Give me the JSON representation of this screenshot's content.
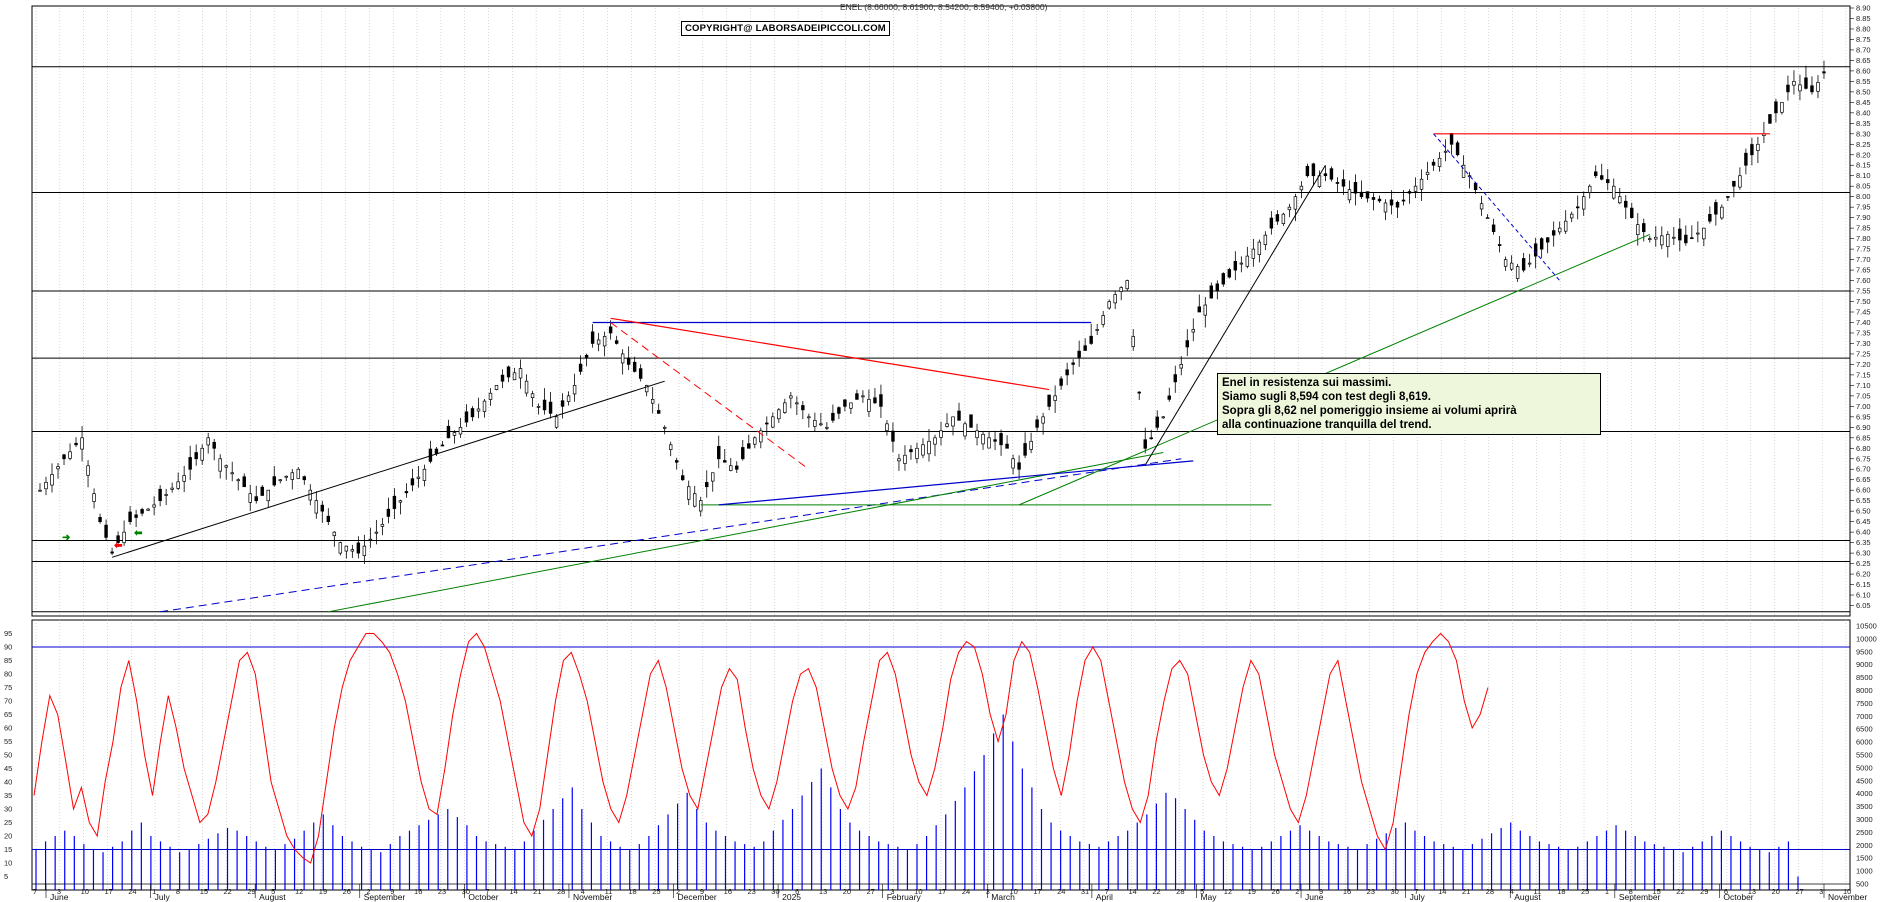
{
  "header": {
    "title": "ENEL (8.66000, 8.61900, 8.54200, 8.59400, +0.03800)"
  },
  "copyright": "COPYRIGHT@ LABORSADEIPICCOLI.COM",
  "note": {
    "lines": [
      "Enel in resistenza sui massimi.",
      "Siamo sugli 8,594 con test degli 8,619.",
      "Sopra gli 8,62 nel pomeriggio insieme ai volumi aprirà",
      "alla continuazione tranquilla del trend."
    ]
  },
  "colors": {
    "price": "#000000",
    "stochastic": "#ff0000",
    "volume": "#0000ff",
    "support_green": "#008000",
    "trend_blue": "#0000cc",
    "resistance_red": "#ff0000",
    "grid": "#bbbbbb",
    "note_bg": "#eef7dc"
  },
  "chart_data": [
    {
      "type": "candlestick",
      "title": "ENEL (8.66000, 8.61900, 8.54200, 8.59400, +0.03800)",
      "ylim": [
        6.0,
        8.9
      ],
      "y_ticks": [
        "8.90",
        "8.85",
        "8.80",
        "8.75",
        "8.70",
        "8.65",
        "8.60",
        "8.55",
        "8.50",
        "8.45",
        "8.40",
        "8.35",
        "8.30",
        "8.25",
        "8.20",
        "8.15",
        "8.10",
        "8.05",
        "8.00",
        "7.95",
        "7.90",
        "7.85",
        "7.80",
        "7.75",
        "7.70",
        "7.65",
        "7.60",
        "7.55",
        "7.50",
        "7.45",
        "7.40",
        "7.35",
        "7.30",
        "7.25",
        "7.20",
        "7.15",
        "7.10",
        "7.05",
        "7.00",
        "6.95",
        "6.90",
        "6.85",
        "6.80",
        "6.75",
        "6.70",
        "6.65",
        "6.60",
        "6.55",
        "6.50",
        "6.45",
        "6.40",
        "6.35",
        "6.30",
        "6.25",
        "6.20",
        "6.15",
        "6.10",
        "6.05"
      ],
      "horizontal_levels": [
        8.62,
        8.02,
        7.55,
        7.23,
        6.88,
        6.36,
        6.26,
        6.02
      ],
      "close_path": [
        [
          0,
          6.6
        ],
        [
          4,
          6.75
        ],
        [
          7,
          6.85
        ],
        [
          10,
          6.45
        ],
        [
          12,
          6.3
        ],
        [
          15,
          6.45
        ],
        [
          20,
          6.55
        ],
        [
          25,
          6.7
        ],
        [
          28,
          6.85
        ],
        [
          30,
          6.75
        ],
        [
          33,
          6.65
        ],
        [
          36,
          6.55
        ],
        [
          40,
          6.65
        ],
        [
          43,
          6.7
        ],
        [
          46,
          6.55
        ],
        [
          50,
          6.35
        ],
        [
          53,
          6.3
        ],
        [
          56,
          6.4
        ],
        [
          60,
          6.55
        ],
        [
          64,
          6.7
        ],
        [
          68,
          6.85
        ],
        [
          72,
          6.95
        ],
        [
          76,
          7.1
        ],
        [
          80,
          7.18
        ],
        [
          83,
          7.0
        ],
        [
          86,
          6.95
        ],
        [
          89,
          7.1
        ],
        [
          92,
          7.3
        ],
        [
          95,
          7.35
        ],
        [
          98,
          7.2
        ],
        [
          101,
          7.1
        ],
        [
          104,
          6.9
        ],
        [
          107,
          6.65
        ],
        [
          110,
          6.55
        ],
        [
          113,
          6.75
        ],
        [
          116,
          6.7
        ],
        [
          119,
          6.85
        ],
        [
          122,
          6.95
        ],
        [
          125,
          7.05
        ],
        [
          128,
          6.95
        ],
        [
          131,
          6.9
        ],
        [
          134,
          7.0
        ],
        [
          137,
          7.05
        ],
        [
          140,
          7.0
        ],
        [
          143,
          6.75
        ],
        [
          146,
          6.8
        ],
        [
          149,
          6.85
        ],
        [
          152,
          6.95
        ],
        [
          155,
          6.9
        ],
        [
          158,
          6.85
        ],
        [
          161,
          6.8
        ],
        [
          163,
          6.7
        ],
        [
          166,
          6.9
        ],
        [
          169,
          7.05
        ],
        [
          172,
          7.2
        ],
        [
          175,
          7.3
        ],
        [
          178,
          7.5
        ],
        [
          181,
          7.6
        ],
        [
          184,
          6.8
        ],
        [
          187,
          6.95
        ],
        [
          190,
          7.2
        ],
        [
          193,
          7.45
        ],
        [
          196,
          7.55
        ],
        [
          199,
          7.65
        ],
        [
          202,
          7.75
        ],
        [
          205,
          7.85
        ],
        [
          208,
          7.95
        ],
        [
          211,
          8.1
        ],
        [
          214,
          8.1
        ],
        [
          217,
          8.05
        ],
        [
          220,
          8.0
        ],
        [
          223,
          7.98
        ],
        [
          226,
          7.95
        ],
        [
          229,
          8.05
        ],
        [
          232,
          8.15
        ],
        [
          235,
          8.25
        ],
        [
          238,
          8.1
        ],
        [
          241,
          7.9
        ],
        [
          244,
          7.7
        ],
        [
          247,
          7.65
        ],
        [
          250,
          7.75
        ],
        [
          253,
          7.85
        ],
        [
          256,
          7.95
        ],
        [
          259,
          8.1
        ],
        [
          262,
          8.05
        ],
        [
          265,
          7.9
        ],
        [
          268,
          7.8
        ],
        [
          271,
          7.82
        ],
        [
          274,
          7.78
        ],
        [
          277,
          7.85
        ],
        [
          280,
          7.95
        ],
        [
          283,
          8.1
        ],
        [
          286,
          8.25
        ],
        [
          289,
          8.4
        ],
        [
          292,
          8.55
        ],
        [
          295,
          8.5
        ],
        [
          297,
          8.59
        ]
      ],
      "x_day_labels": [
        "7",
        "3",
        "10",
        "17",
        "24",
        "1",
        "8",
        "15",
        "22",
        "29",
        "5",
        "12",
        "19",
        "26",
        "2",
        "9",
        "16",
        "23",
        "30",
        "7",
        "14",
        "21",
        "28",
        "4",
        "11",
        "18",
        "25",
        "2",
        "9",
        "16",
        "23",
        "30",
        "6",
        "13",
        "20",
        "27",
        "3",
        "10",
        "17",
        "24",
        "3",
        "10",
        "17",
        "24",
        "31",
        "7",
        "14",
        "22",
        "28",
        "5",
        "12",
        "19",
        "26",
        "2",
        "9",
        "16",
        "23",
        "30",
        "7",
        "14",
        "21",
        "28",
        "4",
        "11",
        "18",
        "25",
        "1",
        "8",
        "15",
        "22",
        "29",
        "6",
        "13",
        "20",
        "27",
        "3",
        "10"
      ],
      "x_month_labels": [
        "June",
        "July",
        "August",
        "September",
        "October",
        "November",
        "December",
        "2025",
        "February",
        "March",
        "April",
        "May",
        "June",
        "July",
        "August",
        "September",
        "October",
        "November"
      ]
    },
    {
      "type": "line",
      "title": "",
      "ylim": [
        0,
        100
      ],
      "y_ticks_left": [
        "95",
        "90",
        "85",
        "80",
        "75",
        "70",
        "65",
        "60",
        "55",
        "50",
        "45",
        "40",
        "35",
        "30",
        "25",
        "20",
        "15",
        "10",
        "5"
      ],
      "y_ticks_right": [
        "10500",
        "10000",
        "9500",
        "9000",
        "8500",
        "8000",
        "7500",
        "7000",
        "6500",
        "6000",
        "5500",
        "5000",
        "4500",
        "4000",
        "3500",
        "3000",
        "2500",
        "2000",
        "1500",
        "1000",
        "500"
      ],
      "levels": [
        90,
        15
      ],
      "series": [
        {
          "values": [
            35,
            55,
            72,
            65,
            48,
            30,
            38,
            25,
            20,
            40,
            55,
            75,
            85,
            70,
            50,
            35,
            55,
            72,
            60,
            45,
            35,
            25,
            28,
            40,
            55,
            70,
            85,
            88,
            80,
            60,
            40,
            30,
            20,
            15,
            12,
            10,
            20,
            40,
            60,
            75,
            85,
            90,
            95,
            95,
            92,
            88,
            80,
            70,
            55,
            40,
            30,
            28,
            45,
            65,
            80,
            92,
            95,
            90,
            80,
            70,
            55,
            40,
            25,
            20,
            30,
            50,
            70,
            85,
            88,
            80,
            70,
            55,
            40,
            30,
            25,
            35,
            50,
            65,
            80,
            85,
            75,
            60,
            45,
            35,
            30,
            45,
            60,
            75,
            82,
            78,
            60,
            45,
            35,
            30,
            40,
            55,
            70,
            80,
            82,
            75,
            60,
            45,
            35,
            30,
            38,
            55,
            70,
            85,
            88,
            80,
            65,
            50,
            40,
            35,
            45,
            60,
            78,
            88,
            92,
            90,
            80,
            65,
            55,
            65,
            85,
            92,
            88,
            75,
            60,
            45,
            35,
            50,
            70,
            85,
            90,
            85,
            70,
            55,
            40,
            30,
            25,
            35,
            55,
            70,
            82,
            85,
            80,
            65,
            50,
            40,
            35,
            45,
            60,
            75,
            85,
            80,
            65,
            50,
            40,
            30,
            25,
            35,
            50,
            65,
            80,
            85,
            70,
            55,
            40,
            30,
            20,
            15,
            25,
            45,
            65,
            80,
            88,
            92,
            95,
            92,
            85,
            70,
            60,
            65,
            75
          ]
        },
        {
          "values": [
            15,
            18,
            20,
            22,
            20,
            17,
            15,
            14,
            16,
            18,
            22,
            25,
            20,
            18,
            16,
            14,
            15,
            17,
            19,
            21,
            23,
            22,
            20,
            18,
            16,
            15,
            17,
            19,
            22,
            25,
            28,
            24,
            20,
            18,
            16,
            15,
            14,
            17,
            20,
            22,
            24,
            26,
            28,
            30,
            27,
            24,
            20,
            18,
            17,
            16,
            15,
            18,
            22,
            26,
            30,
            34,
            38,
            30,
            25,
            20,
            18,
            16,
            15,
            17,
            20,
            24,
            28,
            32,
            36,
            30,
            25,
            22,
            20,
            18,
            17,
            16,
            18,
            22,
            26,
            30,
            35,
            40,
            45,
            38,
            30,
            25,
            22,
            20,
            18,
            17,
            16,
            15,
            17,
            20,
            24,
            28,
            33,
            38,
            44,
            50,
            58,
            65,
            55,
            45,
            38,
            30,
            25,
            22,
            20,
            18,
            17,
            16,
            18,
            20,
            22,
            25,
            28,
            32,
            36,
            34,
            30,
            26,
            22,
            20,
            18,
            17,
            16,
            15,
            16,
            18,
            20,
            22,
            24,
            22,
            20,
            18,
            17,
            16,
            15,
            17,
            19,
            21,
            23,
            25,
            22,
            20,
            18,
            17,
            16,
            15,
            17,
            19,
            21,
            23,
            25,
            22,
            20,
            18,
            17,
            16,
            15,
            16,
            18,
            20,
            22,
            24,
            22,
            20,
            18,
            17,
            16,
            15,
            14,
            16,
            18,
            20,
            22,
            20,
            18,
            16,
            15,
            14,
            16,
            18,
            5
          ]
        }
      ]
    }
  ]
}
